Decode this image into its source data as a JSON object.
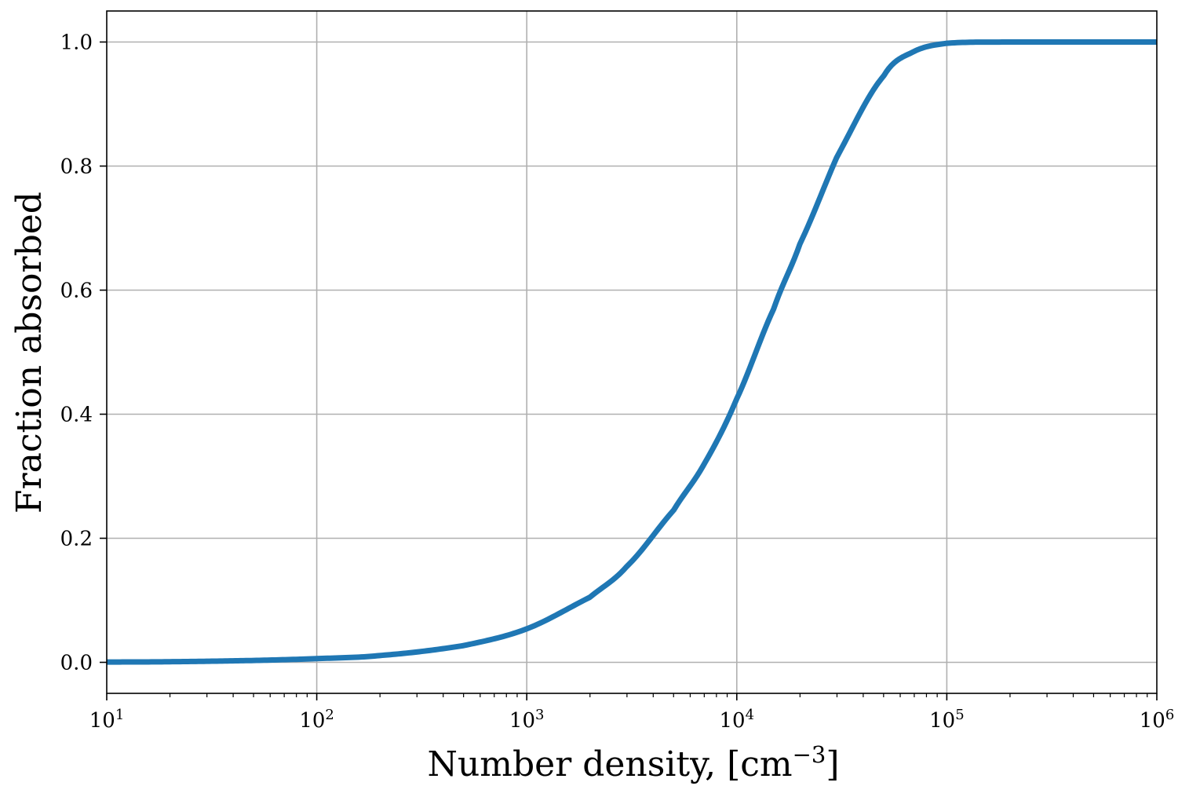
{
  "chart_data": {
    "type": "line",
    "xlabel": "Number density, [cm",
    "xlabel_superscript": "−3",
    "xlabel_suffix": "]",
    "ylabel": "Fraction absorbed",
    "x_scale": "log",
    "xlim": [
      10,
      1000000
    ],
    "ylim": [
      -0.05,
      1.05
    ],
    "grid": true,
    "x_ticks": [
      {
        "base": "10",
        "exp": "1"
      },
      {
        "base": "10",
        "exp": "2"
      },
      {
        "base": "10",
        "exp": "3"
      },
      {
        "base": "10",
        "exp": "4"
      },
      {
        "base": "10",
        "exp": "5"
      },
      {
        "base": "10",
        "exp": "6"
      }
    ],
    "y_ticks": [
      "0.0",
      "0.2",
      "0.4",
      "0.6",
      "0.8",
      "1.0"
    ],
    "series": [
      {
        "color": "#1f77b4",
        "x": [
          10,
          20,
          50,
          100,
          200,
          500,
          1000,
          2000,
          3000,
          5000,
          7000,
          10000,
          15000,
          20000,
          30000,
          50000,
          70000,
          100000,
          200000,
          500000,
          1000000
        ],
        "y": [
          0.0005,
          0.001,
          0.003,
          0.006,
          0.011,
          0.027,
          0.054,
          0.105,
          0.155,
          0.245,
          0.32,
          0.425,
          0.57,
          0.675,
          0.815,
          0.945,
          0.985,
          0.998,
          1.0,
          1.0,
          1.0
        ]
      }
    ]
  }
}
